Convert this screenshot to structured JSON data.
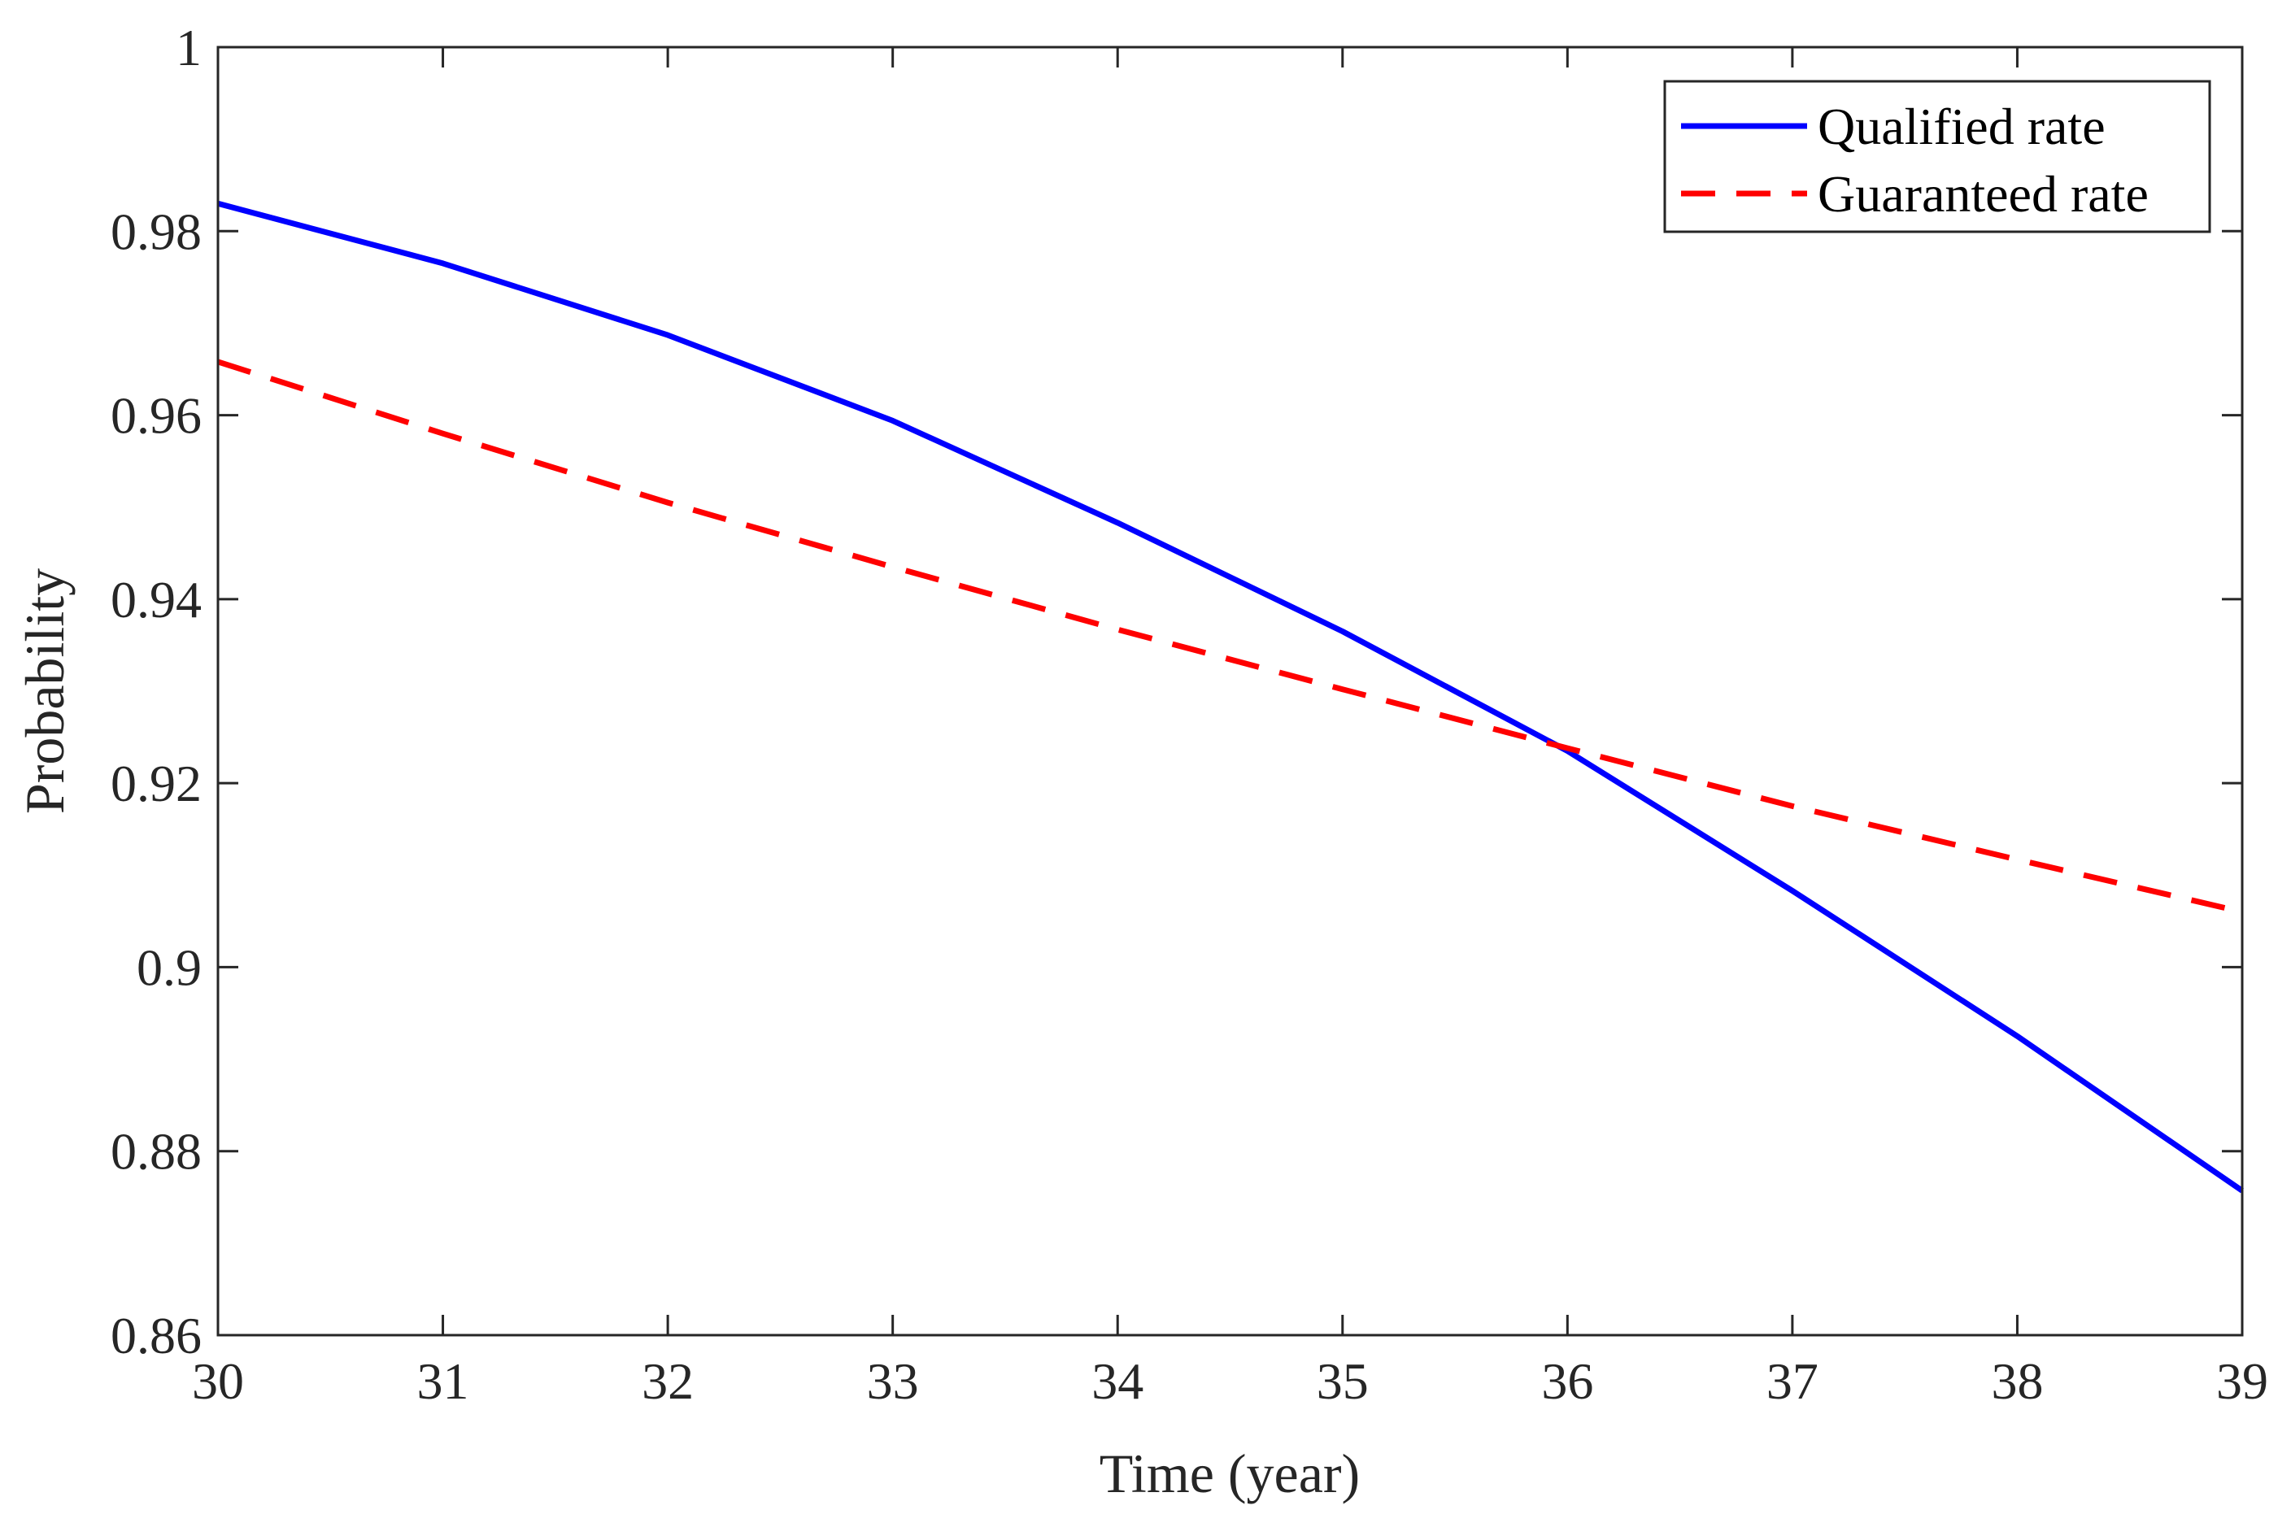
{
  "chart_data": {
    "type": "line",
    "title": "",
    "xlabel": "Time (year)",
    "ylabel": "Probability",
    "xlim": [
      30,
      39
    ],
    "ylim": [
      0.86,
      1
    ],
    "xticks": [
      30,
      31,
      32,
      33,
      34,
      35,
      36,
      37,
      38,
      39
    ],
    "yticks": [
      0.86,
      0.88,
      0.9,
      0.92,
      0.94,
      0.96,
      0.98,
      1
    ],
    "xtick_labels": [
      "30",
      "31",
      "32",
      "33",
      "34",
      "35",
      "36",
      "37",
      "38",
      "39"
    ],
    "ytick_labels": [
      "0.86",
      "0.88",
      "0.9",
      "0.92",
      "0.94",
      "0.96",
      "0.98",
      "1"
    ],
    "grid": false,
    "legend_position": "top-right",
    "x": [
      30,
      31,
      32,
      33,
      34,
      35,
      36,
      37,
      38,
      39
    ],
    "series": [
      {
        "name": "Qualified rate",
        "style": "solid",
        "color": "#0000ff",
        "values": [
          0.983,
          0.9765,
          0.9687,
          0.9594,
          0.9483,
          0.9365,
          0.9235,
          0.9083,
          0.8925,
          0.8757
        ]
      },
      {
        "name": "Guaranteed rate",
        "style": "dashed",
        "color": "#ff0000",
        "values": [
          0.9658,
          0.958,
          0.9505,
          0.9435,
          0.9367,
          0.9302,
          0.9238,
          0.9175,
          0.9117,
          0.906
        ]
      }
    ]
  }
}
